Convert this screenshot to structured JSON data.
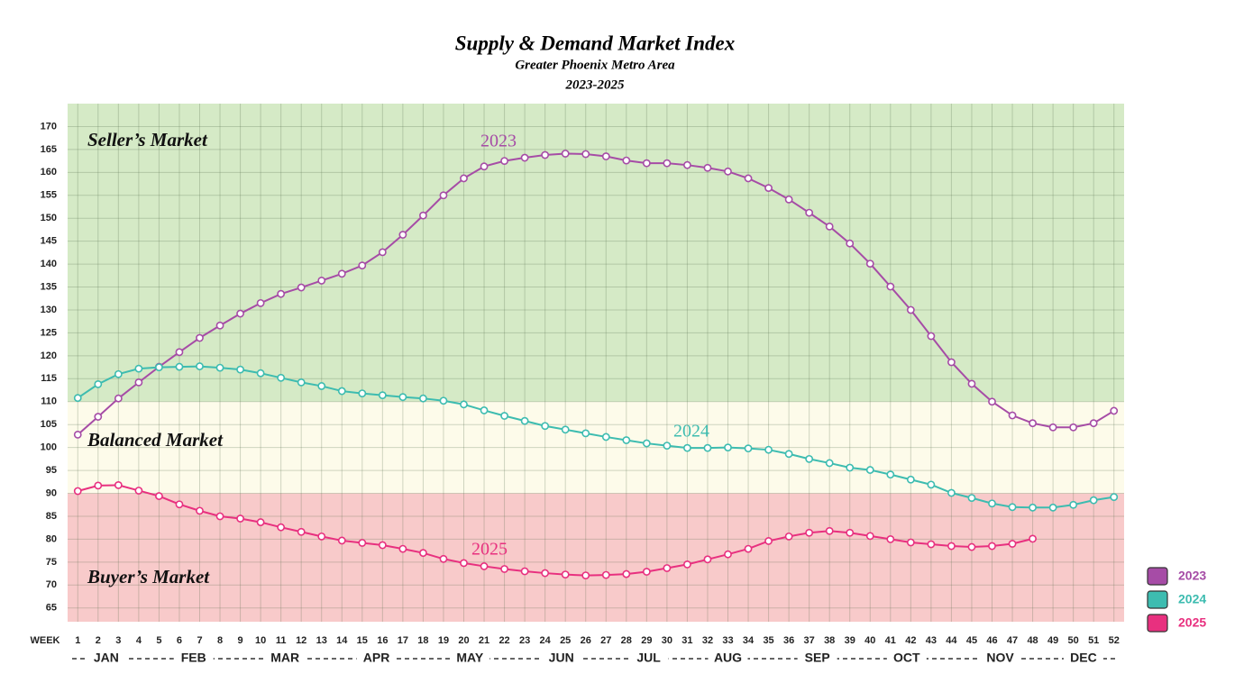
{
  "chart_data": {
    "type": "line",
    "title": "Supply & Demand Market Index",
    "subtitle_lines": [
      "Greater Phoenix Metro Area",
      "2023-2025"
    ],
    "x_label": "WEEK",
    "x": [
      1,
      2,
      3,
      4,
      5,
      6,
      7,
      8,
      9,
      10,
      11,
      12,
      13,
      14,
      15,
      16,
      17,
      18,
      19,
      20,
      21,
      22,
      23,
      24,
      25,
      26,
      27,
      28,
      29,
      30,
      31,
      32,
      33,
      34,
      35,
      36,
      37,
      38,
      39,
      40,
      41,
      42,
      43,
      44,
      45,
      46,
      47,
      48,
      49,
      50,
      51,
      52
    ],
    "xlim": [
      0.5,
      52.5
    ],
    "months": [
      "JAN",
      "FEB",
      "MAR",
      "APR",
      "MAY",
      "JUN",
      "JUL",
      "AUG",
      "SEP",
      "OCT",
      "NOV",
      "DEC"
    ],
    "ylim": [
      62,
      175
    ],
    "yticks": [
      65,
      70,
      75,
      80,
      85,
      90,
      95,
      100,
      105,
      110,
      115,
      120,
      125,
      130,
      135,
      140,
      145,
      150,
      155,
      160,
      165,
      170
    ],
    "grid": true,
    "zone_bounds": [
      90,
      110
    ],
    "zones": [
      {
        "label": "Buyer’s Market",
        "color": "#f8caca"
      },
      {
        "label": "Balanced Market",
        "color": "#fdfbea"
      },
      {
        "label": "Seller’s Market",
        "color": "#d5eac6"
      }
    ],
    "legend": "right-bottom",
    "series": [
      {
        "name": "2023",
        "color": "#a64ca6",
        "values": [
          102.8,
          106.7,
          110.7,
          114.2,
          117.6,
          120.8,
          123.9,
          126.6,
          129.2,
          131.5,
          133.5,
          134.9,
          136.4,
          137.9,
          139.7,
          142.6,
          146.4,
          150.6,
          155,
          158.7,
          161.3,
          162.5,
          163.2,
          163.8,
          164.1,
          164,
          163.5,
          162.6,
          162,
          162,
          161.6,
          161,
          160.2,
          158.7,
          156.6,
          154.1,
          151.2,
          148.2,
          144.5,
          140.1,
          135.1,
          130,
          124.3,
          118.6,
          113.9,
          110,
          107,
          105.3,
          104.4,
          104.4,
          105.3,
          108
        ]
      },
      {
        "name": "2024",
        "color": "#3dbcb0",
        "values": [
          110.8,
          113.8,
          116,
          117.2,
          117.5,
          117.6,
          117.7,
          117.4,
          117,
          116.2,
          115.2,
          114.2,
          113.4,
          112.3,
          111.8,
          111.4,
          111,
          110.7,
          110.2,
          109.4,
          108.1,
          106.9,
          105.8,
          104.7,
          103.9,
          103.1,
          102.3,
          101.6,
          100.9,
          100.4,
          99.9,
          99.9,
          100,
          99.8,
          99.5,
          98.6,
          97.5,
          96.6,
          95.6,
          95.1,
          94.1,
          93,
          91.9,
          90.1,
          89,
          87.8,
          87,
          86.9,
          86.9,
          87.5,
          88.5,
          89.2
        ]
      },
      {
        "name": "2025",
        "color": "#e8307f",
        "values": [
          90.5,
          91.7,
          91.8,
          90.6,
          89.4,
          87.6,
          86.2,
          85,
          84.5,
          83.7,
          82.6,
          81.6,
          80.6,
          79.7,
          79.2,
          78.7,
          77.9,
          77,
          75.7,
          74.8,
          74.1,
          73.5,
          73,
          72.6,
          72.3,
          72.1,
          72.2,
          72.4,
          72.9,
          73.7,
          74.5,
          75.6,
          76.7,
          77.9,
          79.6,
          80.6,
          81.4,
          81.8,
          81.4,
          80.7,
          80,
          79.3,
          78.9,
          78.5,
          78.3,
          78.5,
          79,
          80.1,
          null,
          null,
          null,
          null
        ]
      }
    ]
  }
}
